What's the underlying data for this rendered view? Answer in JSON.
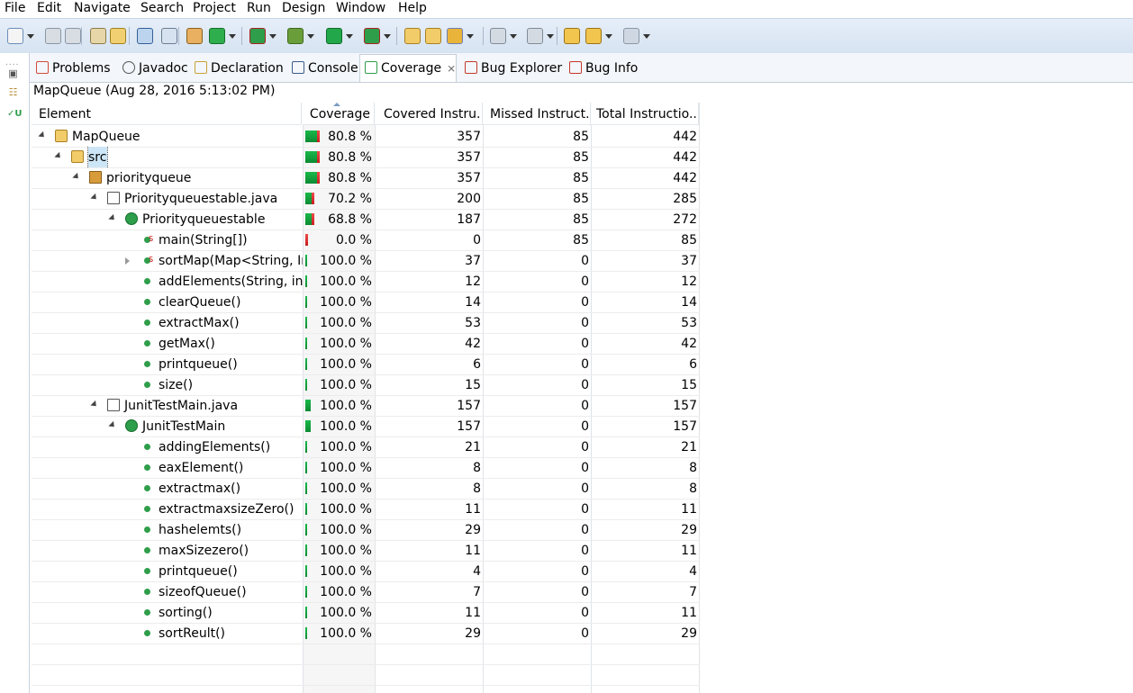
{
  "menubar": [
    "File",
    "Edit",
    "Navigate",
    "Search",
    "Project",
    "Run",
    "Design",
    "Window",
    "Help"
  ],
  "tabs": [
    {
      "label": "Problems",
      "icon": "problems-icon"
    },
    {
      "label": "Javadoc",
      "icon": "javadoc-icon"
    },
    {
      "label": "Declaration",
      "icon": "declaration-icon"
    },
    {
      "label": "Console",
      "icon": "console-icon"
    },
    {
      "label": "Coverage",
      "icon": "coverage-icon",
      "active": true
    },
    {
      "label": "Bug Explorer",
      "icon": "bug-explorer-icon"
    },
    {
      "label": "Bug Info",
      "icon": "bug-info-icon"
    }
  ],
  "session_label": "MapQueue (Aug 28, 2016 5:13:02 PM)",
  "columns": {
    "element": "Element",
    "coverage": "Coverage",
    "covered": "Covered Instru...",
    "missed": "Missed Instruct...",
    "total": "Total Instructio..."
  },
  "rows": [
    {
      "name": "MapQueue",
      "type": "project",
      "depth": 0,
      "twisty": "open",
      "coverage": "80.8 %",
      "covered": "357",
      "missed": "85",
      "total": "442",
      "ratio": 0.808
    },
    {
      "name": "src",
      "type": "source-folder",
      "depth": 1,
      "twisty": "open",
      "coverage": "80.8 %",
      "covered": "357",
      "missed": "85",
      "total": "442",
      "ratio": 0.808,
      "selected": true
    },
    {
      "name": "priorityqueue",
      "type": "package",
      "depth": 2,
      "twisty": "open",
      "coverage": "80.8 %",
      "covered": "357",
      "missed": "85",
      "total": "442",
      "ratio": 0.808
    },
    {
      "name": "Priorityqueuestable.java",
      "type": "java-file",
      "depth": 3,
      "twisty": "open",
      "coverage": "70.2 %",
      "covered": "200",
      "missed": "85",
      "total": "285",
      "ratio": 0.702
    },
    {
      "name": "Priorityqueuestable",
      "type": "class",
      "depth": 4,
      "twisty": "open",
      "coverage": "68.8 %",
      "covered": "187",
      "missed": "85",
      "total": "272",
      "ratio": 0.688
    },
    {
      "name": "main(String[])",
      "type": "static-method",
      "depth": 5,
      "twisty": "",
      "coverage": "0.0 %",
      "covered": "0",
      "missed": "85",
      "total": "85",
      "ratio": 0.0
    },
    {
      "name": "sortMap(Map<String, In",
      "type": "static-method",
      "depth": 5,
      "twisty": "closed",
      "coverage": "100.0 %",
      "covered": "37",
      "missed": "0",
      "total": "37",
      "ratio": 1.0
    },
    {
      "name": "addElements(String, int)",
      "type": "method",
      "depth": 5,
      "twisty": "",
      "coverage": "100.0 %",
      "covered": "12",
      "missed": "0",
      "total": "12",
      "ratio": 1.0
    },
    {
      "name": "clearQueue()",
      "type": "method",
      "depth": 5,
      "twisty": "",
      "coverage": "100.0 %",
      "covered": "14",
      "missed": "0",
      "total": "14",
      "ratio": 1.0
    },
    {
      "name": "extractMax()",
      "type": "method",
      "depth": 5,
      "twisty": "",
      "coverage": "100.0 %",
      "covered": "53",
      "missed": "0",
      "total": "53",
      "ratio": 1.0
    },
    {
      "name": "getMax()",
      "type": "method",
      "depth": 5,
      "twisty": "",
      "coverage": "100.0 %",
      "covered": "42",
      "missed": "0",
      "total": "42",
      "ratio": 1.0
    },
    {
      "name": "printqueue()",
      "type": "method",
      "depth": 5,
      "twisty": "",
      "coverage": "100.0 %",
      "covered": "6",
      "missed": "0",
      "total": "6",
      "ratio": 1.0
    },
    {
      "name": "size()",
      "type": "method",
      "depth": 5,
      "twisty": "",
      "coverage": "100.0 %",
      "covered": "15",
      "missed": "0",
      "total": "15",
      "ratio": 1.0
    },
    {
      "name": "JunitTestMain.java",
      "type": "java-file",
      "depth": 3,
      "twisty": "open",
      "coverage": "100.0 %",
      "covered": "157",
      "missed": "0",
      "total": "157",
      "ratio": 1.0
    },
    {
      "name": "JunitTestMain",
      "type": "class",
      "depth": 4,
      "twisty": "open",
      "coverage": "100.0 %",
      "covered": "157",
      "missed": "0",
      "total": "157",
      "ratio": 1.0
    },
    {
      "name": "addingElements()",
      "type": "method",
      "depth": 5,
      "twisty": "",
      "coverage": "100.0 %",
      "covered": "21",
      "missed": "0",
      "total": "21",
      "ratio": 1.0
    },
    {
      "name": "eaxElement()",
      "type": "method",
      "depth": 5,
      "twisty": "",
      "coverage": "100.0 %",
      "covered": "8",
      "missed": "0",
      "total": "8",
      "ratio": 1.0
    },
    {
      "name": "extractmax()",
      "type": "method",
      "depth": 5,
      "twisty": "",
      "coverage": "100.0 %",
      "covered": "8",
      "missed": "0",
      "total": "8",
      "ratio": 1.0
    },
    {
      "name": "extractmaxsizeZero()",
      "type": "method",
      "depth": 5,
      "twisty": "",
      "coverage": "100.0 %",
      "covered": "11",
      "missed": "0",
      "total": "11",
      "ratio": 1.0
    },
    {
      "name": "hashelemts()",
      "type": "method",
      "depth": 5,
      "twisty": "",
      "coverage": "100.0 %",
      "covered": "29",
      "missed": "0",
      "total": "29",
      "ratio": 1.0
    },
    {
      "name": "maxSizezero()",
      "type": "method",
      "depth": 5,
      "twisty": "",
      "coverage": "100.0 %",
      "covered": "11",
      "missed": "0",
      "total": "11",
      "ratio": 1.0
    },
    {
      "name": "printqueue()",
      "type": "method",
      "depth": 5,
      "twisty": "",
      "coverage": "100.0 %",
      "covered": "4",
      "missed": "0",
      "total": "4",
      "ratio": 1.0
    },
    {
      "name": "sizeofQueue()",
      "type": "method",
      "depth": 5,
      "twisty": "",
      "coverage": "100.0 %",
      "covered": "7",
      "missed": "0",
      "total": "7",
      "ratio": 1.0
    },
    {
      "name": "sorting()",
      "type": "method",
      "depth": 5,
      "twisty": "",
      "coverage": "100.0 %",
      "covered": "11",
      "missed": "0",
      "total": "11",
      "ratio": 1.0
    },
    {
      "name": "sortReult()",
      "type": "method",
      "depth": 5,
      "twisty": "",
      "coverage": "100.0 %",
      "covered": "29",
      "missed": "0",
      "total": "29",
      "ratio": 1.0
    }
  ],
  "colors": {
    "covered": "#19b84a",
    "missed": "#e02828",
    "accent": "#3b6fb6"
  }
}
